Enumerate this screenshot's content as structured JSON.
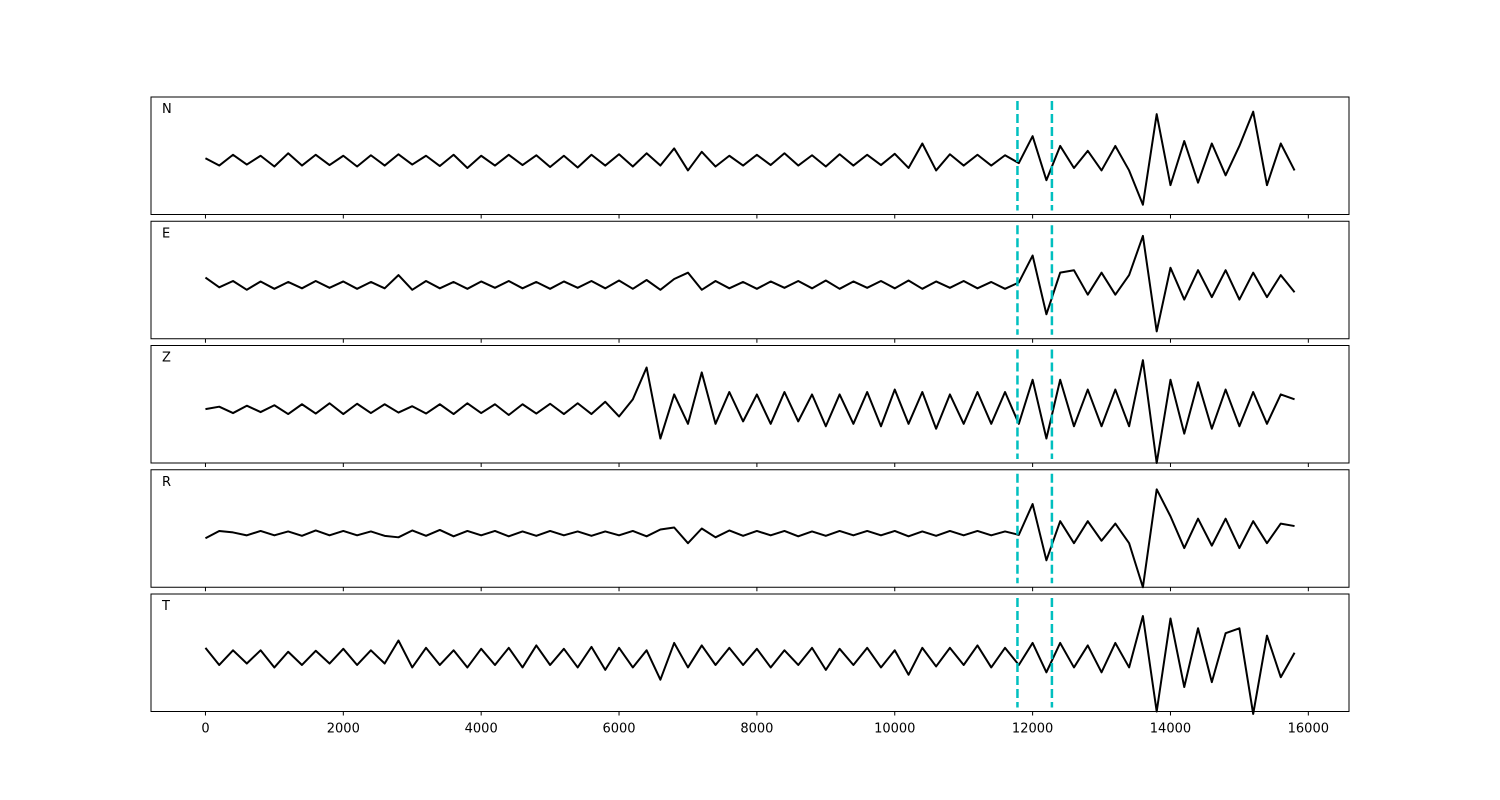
{
  "chart_data": {
    "type": "line",
    "subplots": true,
    "x": [
      0,
      200,
      400,
      600,
      800,
      1000,
      1200,
      1400,
      1600,
      1800,
      2000,
      2200,
      2400,
      2600,
      2800,
      3000,
      3200,
      3400,
      3600,
      3800,
      4000,
      4200,
      4400,
      4600,
      4800,
      5000,
      5200,
      5400,
      5600,
      5800,
      6000,
      6200,
      6400,
      6600,
      6800,
      7000,
      7200,
      7400,
      7600,
      7800,
      8000,
      8200,
      8400,
      8600,
      8800,
      9000,
      9200,
      9400,
      9600,
      9800,
      10000,
      10200,
      10400,
      10600,
      10800,
      11000,
      11200,
      11400,
      11600,
      11800,
      12000,
      12200,
      12400,
      12600,
      12800,
      13000,
      13200,
      13400,
      13600,
      13800,
      14000,
      14200,
      14400,
      14600,
      14800,
      15000,
      15200,
      15400,
      15600,
      15800
    ],
    "xlim": [
      -790,
      16590
    ],
    "xticks": [
      0,
      2000,
      4000,
      6000,
      8000,
      10000,
      12000,
      14000,
      16000
    ],
    "ylim": [
      -1.1,
      1.3
    ],
    "vlines": {
      "x": [
        11780,
        12280
      ],
      "color": "#00bfbf",
      "style": "dashed"
    },
    "series": [
      {
        "name": "N",
        "color": "#000000",
        "values": [
          0.05,
          -0.1,
          0.12,
          -0.08,
          0.1,
          -0.12,
          0.15,
          -0.1,
          0.12,
          -0.09,
          0.1,
          -0.12,
          0.11,
          -0.1,
          0.13,
          -0.08,
          0.1,
          -0.11,
          0.12,
          -0.15,
          0.1,
          -0.1,
          0.12,
          -0.09,
          0.11,
          -0.13,
          0.1,
          -0.14,
          0.12,
          -0.1,
          0.13,
          -0.12,
          0.15,
          -0.1,
          0.25,
          -0.2,
          0.18,
          -0.12,
          0.1,
          -0.1,
          0.12,
          -0.09,
          0.15,
          -0.1,
          0.11,
          -0.12,
          0.13,
          -0.1,
          0.12,
          -0.09,
          0.14,
          -0.15,
          0.35,
          -0.2,
          0.13,
          -0.1,
          0.12,
          -0.1,
          0.11,
          -0.05,
          0.5,
          -0.4,
          0.3,
          -0.15,
          0.2,
          -0.2,
          0.3,
          -0.2,
          -0.9,
          0.95,
          -0.5,
          0.4,
          -0.45,
          0.35,
          -0.3,
          0.3,
          1.0,
          -0.5,
          0.35,
          -0.2
        ]
      },
      {
        "name": "E",
        "color": "#000000",
        "values": [
          0.15,
          -0.05,
          0.08,
          -0.1,
          0.07,
          -0.08,
          0.06,
          -0.07,
          0.08,
          -0.06,
          0.07,
          -0.08,
          0.06,
          -0.07,
          0.2,
          -0.1,
          0.08,
          -0.07,
          0.06,
          -0.08,
          0.07,
          -0.06,
          0.08,
          -0.07,
          0.06,
          -0.08,
          0.07,
          -0.06,
          0.08,
          -0.07,
          0.09,
          -0.08,
          0.1,
          -0.1,
          0.12,
          0.25,
          -0.1,
          0.08,
          -0.07,
          0.06,
          -0.08,
          0.07,
          -0.06,
          0.08,
          -0.07,
          0.09,
          -0.08,
          0.07,
          -0.06,
          0.08,
          -0.07,
          0.09,
          -0.08,
          0.07,
          -0.06,
          0.08,
          -0.07,
          0.06,
          -0.08,
          0.05,
          0.6,
          -0.6,
          0.25,
          0.3,
          -0.2,
          0.25,
          -0.2,
          0.2,
          1.0,
          -0.95,
          0.35,
          -0.3,
          0.3,
          -0.25,
          0.3,
          -0.3,
          0.25,
          -0.25,
          0.2,
          -0.15
        ]
      },
      {
        "name": "Z",
        "color": "#000000",
        "values": [
          0,
          0.05,
          -0.08,
          0.07,
          -0.06,
          0.08,
          -0.1,
          0.1,
          -0.09,
          0.12,
          -0.1,
          0.11,
          -0.08,
          0.1,
          -0.07,
          0.06,
          -0.09,
          0.1,
          -0.1,
          0.12,
          -0.08,
          0.1,
          -0.12,
          0.1,
          -0.09,
          0.11,
          -0.1,
          0.12,
          -0.1,
          0.15,
          -0.15,
          0.2,
          0.85,
          -0.6,
          0.3,
          -0.3,
          0.75,
          -0.3,
          0.35,
          -0.25,
          0.3,
          -0.3,
          0.35,
          -0.25,
          0.3,
          -0.35,
          0.3,
          -0.3,
          0.35,
          -0.35,
          0.4,
          -0.3,
          0.35,
          -0.4,
          0.3,
          -0.3,
          0.35,
          -0.3,
          0.35,
          -0.3,
          0.6,
          -0.6,
          0.6,
          -0.35,
          0.4,
          -0.35,
          0.4,
          -0.35,
          1.0,
          -1.1,
          0.6,
          -0.5,
          0.55,
          -0.4,
          0.4,
          -0.35,
          0.35,
          -0.3,
          0.3,
          0.2
        ]
      },
      {
        "name": "R",
        "color": "#000000",
        "values": [
          -0.1,
          0.05,
          0.02,
          -0.04,
          0.05,
          -0.04,
          0.04,
          -0.05,
          0.06,
          -0.04,
          0.05,
          -0.04,
          0.04,
          -0.05,
          -0.08,
          0.06,
          -0.05,
          0.07,
          -0.06,
          0.05,
          -0.04,
          0.05,
          -0.06,
          0.04,
          -0.05,
          0.05,
          -0.04,
          0.04,
          -0.05,
          0.04,
          -0.04,
          0.05,
          -0.06,
          0.08,
          0.12,
          -0.2,
          0.1,
          -0.08,
          0.06,
          -0.05,
          0.05,
          -0.04,
          0.05,
          -0.06,
          0.04,
          -0.05,
          0.05,
          -0.04,
          0.05,
          -0.04,
          0.05,
          -0.06,
          0.04,
          -0.05,
          0.05,
          -0.04,
          0.05,
          -0.04,
          0.04,
          -0.03,
          0.6,
          -0.55,
          0.25,
          -0.2,
          0.25,
          -0.15,
          0.2,
          -0.2,
          -1.1,
          0.9,
          0.35,
          -0.3,
          0.3,
          -0.25,
          0.3,
          -0.3,
          0.25,
          -0.2,
          0.2,
          0.15
        ]
      },
      {
        "name": "T",
        "color": "#000000",
        "values": [
          0.2,
          -0.15,
          0.15,
          -0.12,
          0.15,
          -0.2,
          0.12,
          -0.15,
          0.14,
          -0.12,
          0.18,
          -0.15,
          0.15,
          -0.12,
          0.35,
          -0.2,
          0.2,
          -0.15,
          0.15,
          -0.2,
          0.18,
          -0.15,
          0.2,
          -0.2,
          0.25,
          -0.15,
          0.18,
          -0.2,
          0.22,
          -0.25,
          0.2,
          -0.2,
          0.15,
          -0.45,
          0.3,
          -0.2,
          0.25,
          -0.15,
          0.2,
          -0.15,
          0.18,
          -0.2,
          0.15,
          -0.15,
          0.2,
          -0.25,
          0.18,
          -0.15,
          0.2,
          -0.2,
          0.15,
          -0.35,
          0.2,
          -0.18,
          0.2,
          -0.15,
          0.25,
          -0.2,
          0.2,
          -0.15,
          0.3,
          -0.3,
          0.3,
          -0.2,
          0.25,
          -0.3,
          0.3,
          -0.2,
          0.85,
          -1.1,
          0.8,
          -0.6,
          0.6,
          -0.5,
          0.5,
          0.6,
          -1.15,
          0.45,
          -0.4,
          0.1
        ]
      }
    ]
  }
}
